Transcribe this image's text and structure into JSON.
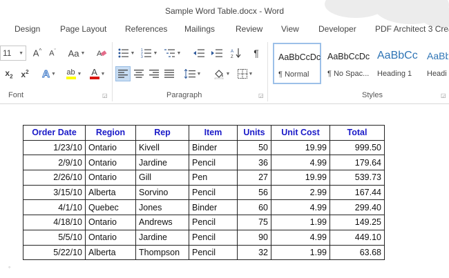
{
  "window": {
    "title": "Sample Word Table.docx - Word"
  },
  "tabs": [
    "Design",
    "Page Layout",
    "References",
    "Mailings",
    "Review",
    "View",
    "Developer",
    "PDF Architect 3 Crea"
  ],
  "ribbon": {
    "font": {
      "size": "11",
      "change_case": "Aa",
      "group_label": "Font"
    },
    "paragraph": {
      "group_label": "Paragraph"
    },
    "styles": {
      "group_label": "Styles",
      "items": [
        {
          "sample": "AaBbCcDc",
          "name": "¶ Normal"
        },
        {
          "sample": "AaBbCcDc",
          "name": "¶ No Spac..."
        },
        {
          "sample": "AaBbCc",
          "name": "Heading 1"
        },
        {
          "sample": "AaBb",
          "name": "Headi"
        }
      ]
    },
    "accent": "#2b579a"
  },
  "table": {
    "headers": [
      "Order Date",
      "Region",
      "Rep",
      "Item",
      "Units",
      "Unit Cost",
      "Total"
    ],
    "header_color": "#1a1ac8",
    "rows": [
      [
        "1/23/10",
        "Ontario",
        "Kivell",
        "Binder",
        "50",
        "19.99",
        "999.50"
      ],
      [
        "2/9/10",
        "Ontario",
        "Jardine",
        "Pencil",
        "36",
        "4.99",
        "179.64"
      ],
      [
        "2/26/10",
        "Ontario",
        "Gill",
        "Pen",
        "27",
        "19.99",
        "539.73"
      ],
      [
        "3/15/10",
        "Alberta",
        "Sorvino",
        "Pencil",
        "56",
        "2.99",
        "167.44"
      ],
      [
        "4/1/10",
        "Quebec",
        "Jones",
        "Binder",
        "60",
        "4.99",
        "299.40"
      ],
      [
        "4/18/10",
        "Ontario",
        "Andrews",
        "Pencil",
        "75",
        "1.99",
        "149.25"
      ],
      [
        "5/5/10",
        "Ontario",
        "Jardine",
        "Pencil",
        "90",
        "4.99",
        "449.10"
      ],
      [
        "5/22/10",
        "Alberta",
        "Thompson",
        "Pencil",
        "32",
        "1.99",
        "63.68"
      ]
    ]
  }
}
